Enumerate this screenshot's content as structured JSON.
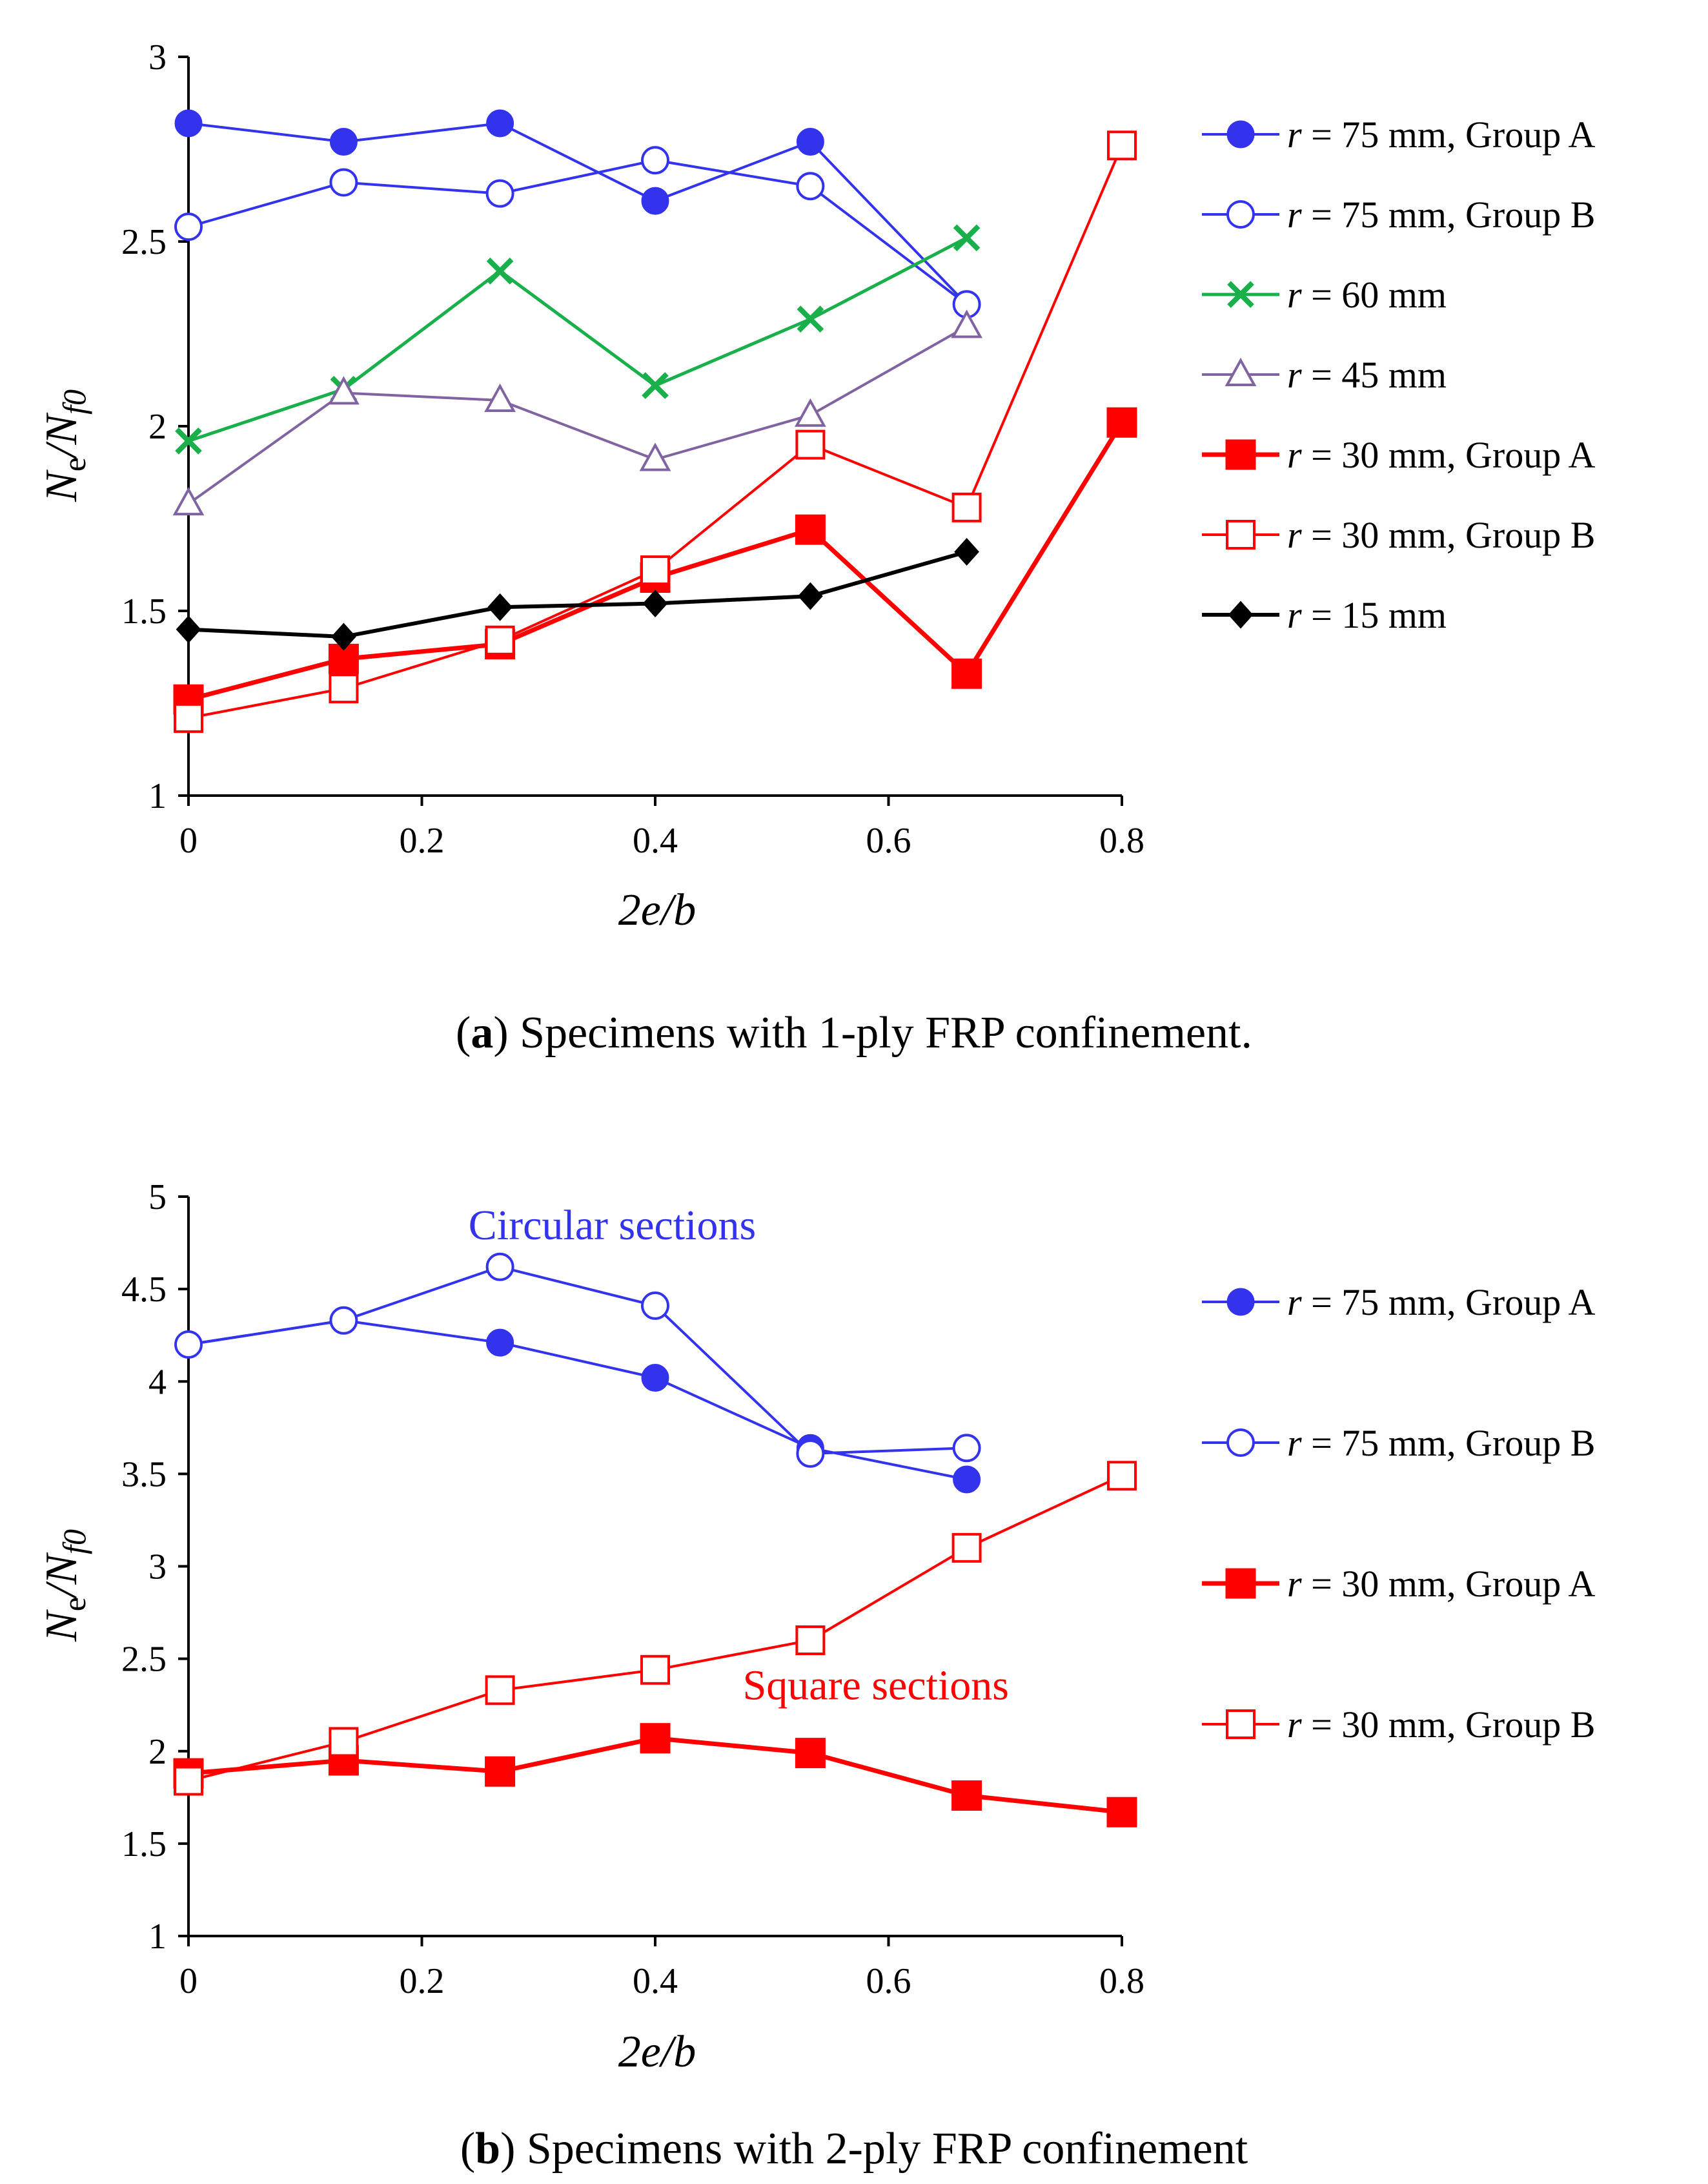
{
  "chart_data": [
    {
      "type": "line",
      "id": "a",
      "caption_letter": "a",
      "caption_text": "Specimens with 1-ply FRP confinement.",
      "xlabel": "2e/b",
      "ylabel": {
        "n": "N",
        "n_sub": "e",
        "sep": "/",
        "d": "N",
        "d_sub": "f0"
      },
      "xlim": [
        0,
        0.8
      ],
      "ylim": [
        1,
        3
      ],
      "xticks": [
        0,
        0.2,
        0.4,
        0.6,
        0.8
      ],
      "xtick_labels": [
        "0",
        "0.2",
        "0.4",
        "0.6",
        "0.8"
      ],
      "yticks": [
        1,
        1.5,
        2,
        2.5,
        3
      ],
      "ytick_labels": [
        "1",
        "1.5",
        "2",
        "2.5",
        "3"
      ],
      "annotations": [],
      "series": [
        {
          "name": "r = 75 mm, Group A",
          "r_sym": "r",
          "label_rest": " = 75 mm, Group A",
          "color": "#3333ee",
          "marker": "circle-filled",
          "line_width": 4,
          "x": [
            0,
            0.133,
            0.267,
            0.4,
            0.533,
            0.667
          ],
          "y": [
            2.82,
            2.77,
            2.82,
            2.61,
            2.77,
            2.33
          ]
        },
        {
          "name": "r = 75 mm, Group B",
          "r_sym": "r",
          "label_rest": " = 75 mm, Group B",
          "color": "#3333ee",
          "marker": "circle-open",
          "line_width": 4,
          "x": [
            0,
            0.133,
            0.267,
            0.4,
            0.533,
            0.667
          ],
          "y": [
            2.54,
            2.66,
            2.63,
            2.72,
            2.65,
            2.33
          ]
        },
        {
          "name": "r = 60 mm",
          "r_sym": "r",
          "label_rest": " = 60 mm",
          "color": "#19b04b",
          "marker": "x",
          "line_width": 5,
          "x": [
            0,
            0.133,
            0.267,
            0.4,
            0.533,
            0.667
          ],
          "y": [
            1.96,
            2.1,
            2.42,
            2.11,
            2.29,
            2.51
          ]
        },
        {
          "name": "r = 45 mm",
          "r_sym": "r",
          "label_rest": " = 45 mm",
          "color": "#8064a2",
          "marker": "triangle-open",
          "line_width": 4,
          "x": [
            0,
            0.133,
            0.267,
            0.4,
            0.533,
            0.667
          ],
          "y": [
            1.79,
            2.09,
            2.07,
            1.91,
            2.03,
            2.27
          ]
        },
        {
          "name": "r = 30 mm, Group A",
          "r_sym": "r",
          "label_rest": " = 30 mm, Group A",
          "color": "#ff0000",
          "marker": "square-filled",
          "line_width": 7,
          "x": [
            0,
            0.133,
            0.267,
            0.4,
            0.533,
            0.667,
            0.8
          ],
          "y": [
            1.26,
            1.37,
            1.41,
            1.59,
            1.72,
            1.33,
            2.01
          ]
        },
        {
          "name": "r = 30 mm, Group B",
          "r_sym": "r",
          "label_rest": " = 30 mm, Group B",
          "color": "#ff0000",
          "marker": "square-open",
          "line_width": 4,
          "x": [
            0,
            0.133,
            0.267,
            0.4,
            0.533,
            0.667,
            0.8
          ],
          "y": [
            1.21,
            1.29,
            1.42,
            1.61,
            1.95,
            1.78,
            2.76
          ]
        },
        {
          "name": "r = 15 mm",
          "r_sym": "r",
          "label_rest": " = 15 mm",
          "color": "#000000",
          "marker": "diamond-filled",
          "line_width": 6,
          "x": [
            0,
            0.133,
            0.267,
            0.4,
            0.533,
            0.667
          ],
          "y": [
            1.45,
            1.43,
            1.51,
            1.52,
            1.54,
            1.66
          ]
        }
      ]
    },
    {
      "type": "line",
      "id": "b",
      "caption_letter": "b",
      "caption_text": "Specimens with 2-ply FRP confinement",
      "xlabel": "2e/b",
      "ylabel": {
        "n": "N",
        "n_sub": "e",
        "sep": "/",
        "d": "N",
        "d_sub": "f0"
      },
      "xlim": [
        0,
        0.8
      ],
      "ylim": [
        1,
        5
      ],
      "xticks": [
        0,
        0.2,
        0.4,
        0.6,
        0.8
      ],
      "xtick_labels": [
        "0",
        "0.2",
        "0.4",
        "0.6",
        "0.8"
      ],
      "yticks": [
        1,
        1.5,
        2,
        2.5,
        3,
        3.5,
        4,
        4.5,
        5
      ],
      "ytick_labels": [
        "1",
        "1.5",
        "2",
        "2.5",
        "3",
        "3.5",
        "4",
        "4.5",
        "5"
      ],
      "annotations": [
        {
          "text": "Circular  sections",
          "color": "#3333ee",
          "x": 0.24,
          "y": 4.77
        },
        {
          "text": "Square  sections",
          "color": "#ff0000",
          "x": 0.475,
          "y": 2.28
        }
      ],
      "series": [
        {
          "name": "r = 75 mm, Group A",
          "r_sym": "r",
          "label_rest": " = 75 mm, Group A",
          "color": "#3333ee",
          "marker": "circle-filled",
          "line_width": 4,
          "x": [
            0,
            0.133,
            0.267,
            0.4,
            0.533,
            0.667
          ],
          "y": [
            4.2,
            4.33,
            4.21,
            4.02,
            3.64,
            3.47
          ]
        },
        {
          "name": "r = 75 mm, Group B",
          "r_sym": "r",
          "label_rest": " = 75 mm, Group B",
          "color": "#3333ee",
          "marker": "circle-open",
          "line_width": 4,
          "x": [
            0,
            0.133,
            0.267,
            0.4,
            0.533,
            0.667
          ],
          "y": [
            4.2,
            4.33,
            4.62,
            4.41,
            3.61,
            3.64
          ]
        },
        {
          "name": "r = 30 mm, Group A",
          "r_sym": "r",
          "label_rest": " = 30 mm, Group A",
          "color": "#ff0000",
          "marker": "square-filled",
          "line_width": 7,
          "x": [
            0,
            0.133,
            0.267,
            0.4,
            0.533,
            0.667,
            0.8
          ],
          "y": [
            1.88,
            1.95,
            1.89,
            2.07,
            1.99,
            1.76,
            1.67
          ]
        },
        {
          "name": "r = 30 mm, Group B",
          "r_sym": "r",
          "label_rest": " = 30 mm, Group B",
          "color": "#ff0000",
          "marker": "square-open",
          "line_width": 4,
          "x": [
            0,
            0.133,
            0.267,
            0.4,
            0.533,
            0.667,
            0.8
          ],
          "y": [
            1.84,
            2.05,
            2.33,
            2.44,
            2.6,
            3.1,
            3.49
          ]
        }
      ]
    }
  ]
}
